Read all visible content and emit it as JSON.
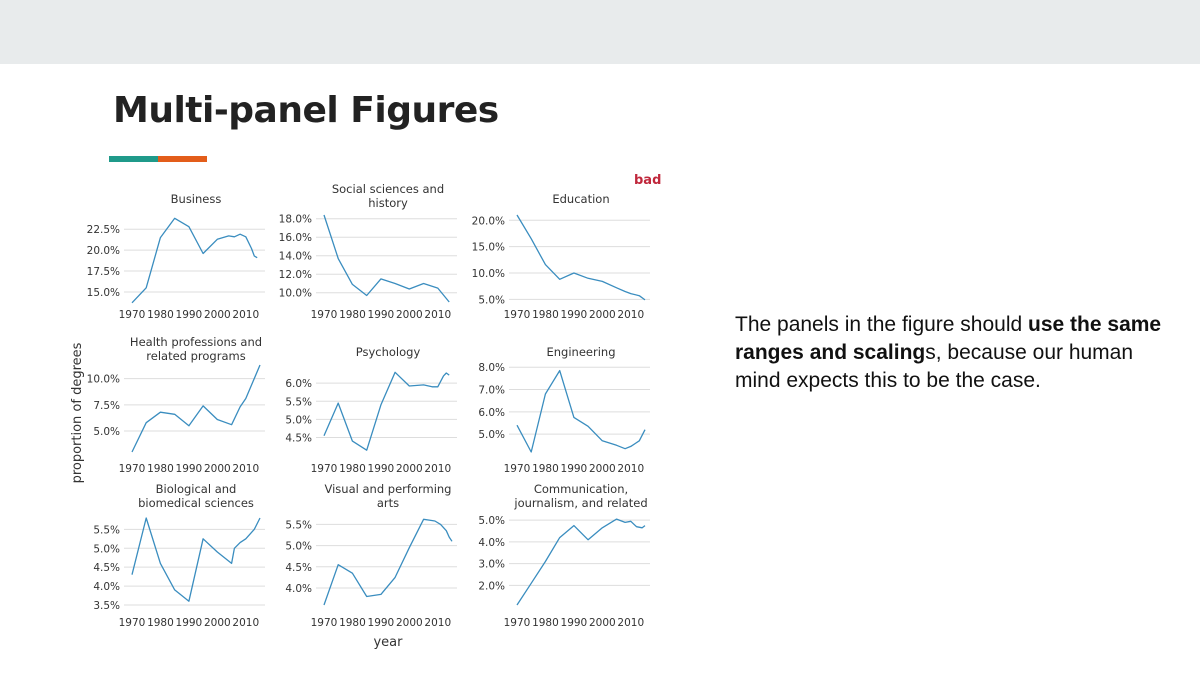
{
  "slide": {
    "title": "Multi-panel Figures",
    "bad_label": "bad",
    "body_pre": "The panels in the figure should ",
    "body_bold": "use the same ranges and scaling",
    "body_post": "s, because our human mind expects this to be the case."
  },
  "colors": {
    "topbar": "#e8ebec",
    "accent_teal": "#1f9a8a",
    "accent_orange": "#e35d1a",
    "bad": "#c0283c",
    "line": "#3a8dbf",
    "grid": "#dddddd",
    "text": "#333333"
  },
  "figure": {
    "ylabel": "proportion of degrees",
    "xlabel": "year"
  },
  "chart_data": [
    {
      "type": "line",
      "title": [
        "Business"
      ],
      "xlim": [
        1970,
        2015
      ],
      "ylim": [
        13.8,
        24.2
      ],
      "x_ticks": [
        1970,
        1980,
        1990,
        2000,
        2010
      ],
      "x_tick_labels": [
        "1970",
        "1980",
        "1990",
        "2000",
        "2010"
      ],
      "y_ticks": [
        15,
        17.5,
        20,
        22.5
      ],
      "y_tick_labels": [
        "15.0%",
        "17.5%",
        "20.0%",
        "22.5%"
      ],
      "x": [
        1970,
        1975,
        1980,
        1985,
        1990,
        1995,
        2000,
        2004,
        2006,
        2008,
        2010,
        2012,
        2013,
        2014
      ],
      "y": [
        13.7,
        15.5,
        21.5,
        23.8,
        22.8,
        19.6,
        21.3,
        21.7,
        21.6,
        21.9,
        21.6,
        20.2,
        19.3,
        19.1
      ]
    },
    {
      "type": "line",
      "title": [
        "Social sciences and",
        "history"
      ],
      "xlim": [
        1970,
        2015
      ],
      "ylim": [
        9.0,
        18.4
      ],
      "x_ticks": [
        1970,
        1980,
        1990,
        2000,
        2010
      ],
      "x_tick_labels": [
        "1970",
        "1980",
        "1990",
        "2000",
        "2010"
      ],
      "y_ticks": [
        10,
        12,
        14,
        16,
        18
      ],
      "y_tick_labels": [
        "10.0%",
        "12.0%",
        "14.0%",
        "16.0%",
        "18.0%"
      ],
      "x": [
        1970,
        1975,
        1980,
        1985,
        1990,
        1995,
        2000,
        2005,
        2010,
        2014
      ],
      "y": [
        18.4,
        13.7,
        10.9,
        9.7,
        11.5,
        11.0,
        10.4,
        11.0,
        10.5,
        9.0
      ]
    },
    {
      "type": "line",
      "title": [
        "Education"
      ],
      "xlim": [
        1970,
        2015
      ],
      "ylim": [
        4.5,
        21.0
      ],
      "x_ticks": [
        1970,
        1980,
        1990,
        2000,
        2010
      ],
      "x_tick_labels": [
        "1970",
        "1980",
        "1990",
        "2000",
        "2010"
      ],
      "y_ticks": [
        5,
        10,
        15,
        20
      ],
      "y_tick_labels": [
        "5.0%",
        "10.0%",
        "15.0%",
        "20.0%"
      ],
      "x": [
        1970,
        1975,
        1980,
        1985,
        1990,
        1995,
        2000,
        2005,
        2008,
        2010,
        2013,
        2015
      ],
      "y": [
        21.0,
        16.5,
        11.6,
        8.8,
        10.0,
        9.0,
        8.4,
        7.2,
        6.5,
        6.1,
        5.7,
        4.9
      ]
    },
    {
      "type": "line",
      "title": [
        "Health professions and",
        "related programs"
      ],
      "xlim": [
        1970,
        2015
      ],
      "ylim": [
        3.0,
        11.3
      ],
      "x_ticks": [
        1970,
        1980,
        1990,
        2000,
        2010
      ],
      "x_tick_labels": [
        "1970",
        "1980",
        "1990",
        "2000",
        "2010"
      ],
      "y_ticks": [
        5,
        7.5,
        10
      ],
      "y_tick_labels": [
        "5.0%",
        "7.5%",
        "10.0%"
      ],
      "x": [
        1970,
        1975,
        1980,
        1985,
        1990,
        1995,
        2000,
        2005,
        2008,
        2010,
        2015
      ],
      "y": [
        3.0,
        5.8,
        6.8,
        6.6,
        5.5,
        7.4,
        6.1,
        5.6,
        7.3,
        8.1,
        11.3
      ]
    },
    {
      "type": "line",
      "title": [
        "Psychology"
      ],
      "xlim": [
        1970,
        2015
      ],
      "ylim": [
        4.1,
        6.5
      ],
      "x_ticks": [
        1970,
        1980,
        1990,
        2000,
        2010
      ],
      "x_tick_labels": [
        "1970",
        "1980",
        "1990",
        "2000",
        "2010"
      ],
      "y_ticks": [
        4.5,
        5.0,
        5.5,
        6.0
      ],
      "y_tick_labels": [
        "4.5%",
        "5.0%",
        "5.5%",
        "6.0%"
      ],
      "x": [
        1970,
        1975,
        1980,
        1985,
        1990,
        1995,
        2000,
        2005,
        2008,
        2010,
        2012,
        2013,
        2014
      ],
      "y": [
        4.55,
        5.45,
        4.4,
        4.15,
        5.4,
        6.3,
        5.92,
        5.95,
        5.9,
        5.9,
        6.2,
        6.28,
        6.22
      ]
    },
    {
      "type": "line",
      "title": [
        "Engineering"
      ],
      "xlim": [
        1970,
        2015
      ],
      "ylim": [
        4.2,
        8.1
      ],
      "x_ticks": [
        1970,
        1980,
        1990,
        2000,
        2010
      ],
      "x_tick_labels": [
        "1970",
        "1980",
        "1990",
        "2000",
        "2010"
      ],
      "y_ticks": [
        5,
        6,
        7,
        8
      ],
      "y_tick_labels": [
        "5.0%",
        "6.0%",
        "7.0%",
        "8.0%"
      ],
      "x": [
        1970,
        1975,
        1980,
        1985,
        1990,
        1995,
        2000,
        2005,
        2008,
        2010,
        2013,
        2015
      ],
      "y": [
        5.4,
        4.2,
        6.8,
        7.85,
        5.75,
        5.35,
        4.7,
        4.5,
        4.35,
        4.45,
        4.7,
        5.2
      ]
    },
    {
      "type": "line",
      "title": [
        "Biological and",
        "biomedical sciences"
      ],
      "xlim": [
        1970,
        2015
      ],
      "ylim": [
        3.5,
        5.8
      ],
      "x_ticks": [
        1970,
        1980,
        1990,
        2000,
        2010
      ],
      "x_tick_labels": [
        "1970",
        "1980",
        "1990",
        "2000",
        "2010"
      ],
      "y_ticks": [
        3.5,
        4.0,
        4.5,
        5.0,
        5.5
      ],
      "y_tick_labels": [
        "3.5%",
        "4.0%",
        "4.5%",
        "5.0%",
        "5.5%"
      ],
      "x": [
        1970,
        1975,
        1980,
        1985,
        1990,
        1995,
        2000,
        2005,
        2006,
        2008,
        2010,
        2013,
        2015
      ],
      "y": [
        4.3,
        5.8,
        4.6,
        3.9,
        3.6,
        5.25,
        4.9,
        4.6,
        5.0,
        5.15,
        5.25,
        5.5,
        5.8
      ]
    },
    {
      "type": "line",
      "title": [
        "Visual and performing",
        "arts"
      ],
      "xlim": [
        1970,
        2015
      ],
      "ylim": [
        3.6,
        5.65
      ],
      "x_ticks": [
        1970,
        1980,
        1990,
        2000,
        2010
      ],
      "x_tick_labels": [
        "1970",
        "1980",
        "1990",
        "2000",
        "2010"
      ],
      "y_ticks": [
        4.0,
        4.5,
        5.0,
        5.5
      ],
      "y_tick_labels": [
        "4.0%",
        "4.5%",
        "5.0%",
        "5.5%"
      ],
      "x": [
        1970,
        1975,
        1980,
        1985,
        1990,
        1995,
        2000,
        2005,
        2007,
        2009,
        2011,
        2013,
        2014,
        2015
      ],
      "y": [
        3.6,
        4.55,
        4.35,
        3.8,
        3.85,
        4.25,
        4.95,
        5.62,
        5.6,
        5.58,
        5.5,
        5.35,
        5.2,
        5.1
      ]
    },
    {
      "type": "line",
      "title": [
        "Communication,",
        "journalism, and related"
      ],
      "xlim": [
        1970,
        2015
      ],
      "ylim": [
        1.1,
        5.1
      ],
      "x_ticks": [
        1970,
        1980,
        1990,
        2000,
        2010
      ],
      "x_tick_labels": [
        "1970",
        "1980",
        "1990",
        "2000",
        "2010"
      ],
      "y_ticks": [
        2,
        3,
        4,
        5
      ],
      "y_tick_labels": [
        "2.0%",
        "3.0%",
        "4.0%",
        "5.0%"
      ],
      "x": [
        1970,
        1975,
        1980,
        1985,
        1990,
        1995,
        2000,
        2005,
        2008,
        2010,
        2012,
        2014,
        2015
      ],
      "y": [
        1.1,
        2.1,
        3.1,
        4.2,
        4.75,
        4.1,
        4.65,
        5.05,
        4.9,
        4.95,
        4.7,
        4.65,
        4.75
      ]
    }
  ]
}
